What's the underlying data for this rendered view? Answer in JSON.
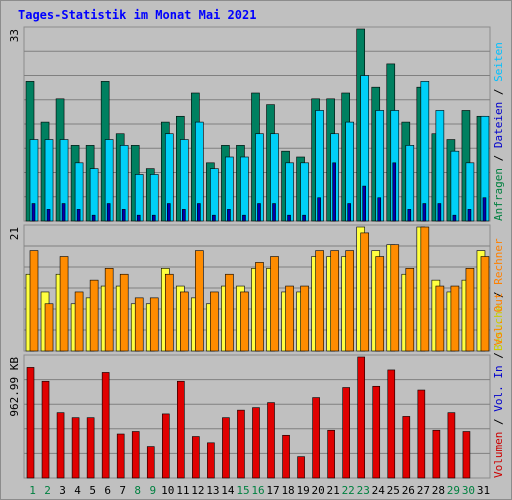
{
  "title": "Tages-Statistik im Monat Mai 2021",
  "chart_data": [
    {
      "type": "bar",
      "name": "top",
      "ymax_label": "33",
      "ylim": [
        0,
        33
      ],
      "right_legend": [
        {
          "text": "Anfragen",
          "color": "#008040"
        },
        {
          "text": "Dateien",
          "color": "#0000cc"
        },
        {
          "text": "Seiten",
          "color": "#00c0ff"
        }
      ],
      "series": [
        {
          "name": "Anfragen",
          "color": "#008060",
          "values": [
            24,
            17,
            21,
            13,
            13,
            24,
            15,
            13,
            9,
            17,
            18,
            22,
            10,
            13,
            13,
            22,
            20,
            12,
            11,
            21,
            21,
            22,
            33,
            23,
            27,
            17,
            23,
            15,
            14,
            19,
            18
          ]
        },
        {
          "name": "Dateien",
          "color": "#00d0f8",
          "values": [
            14,
            14,
            14,
            10,
            9,
            14,
            13,
            8,
            8,
            15,
            14,
            17,
            9,
            11,
            11,
            15,
            15,
            10,
            10,
            19,
            15,
            17,
            25,
            19,
            19,
            13,
            24,
            19,
            12,
            10,
            18
          ]
        },
        {
          "name": "Dateien-inner",
          "color": "#0000b0",
          "values": [
            3,
            2,
            3,
            2,
            1,
            3,
            2,
            1,
            1,
            3,
            2,
            3,
            1,
            2,
            1,
            3,
            3,
            1,
            1,
            4,
            10,
            3,
            6,
            4,
            10,
            2,
            3,
            3,
            1,
            2,
            4
          ]
        }
      ]
    },
    {
      "type": "bar",
      "name": "middle",
      "ymax_label": "21",
      "ylim": [
        0,
        21
      ],
      "right_legend": [
        {
          "text": "Besuche",
          "color": "#cccc00"
        },
        {
          "text": "Rechner",
          "color": "#ff8000"
        }
      ],
      "series": [
        {
          "name": "Besuche",
          "color": "#ffff40",
          "values": [
            13,
            10,
            13,
            8,
            9,
            11,
            11,
            8,
            8,
            14,
            11,
            9,
            8,
            11,
            11,
            14,
            14,
            10,
            10,
            16,
            16,
            16,
            21,
            17,
            18,
            13,
            21,
            12,
            10,
            12,
            17
          ]
        },
        {
          "name": "Rechner",
          "color": "#ff8c00",
          "values": [
            17,
            8,
            16,
            10,
            12,
            14,
            13,
            9,
            9,
            13,
            10,
            17,
            10,
            13,
            10,
            15,
            16,
            11,
            11,
            17,
            17,
            17,
            20,
            16,
            18,
            14,
            21,
            11,
            11,
            14,
            16
          ]
        }
      ]
    },
    {
      "type": "bar",
      "name": "bottom",
      "ymax_label": "962.99 KB",
      "ylim": [
        0,
        962.99
      ],
      "right_legend": [
        {
          "text": "Volumen",
          "color": "#cc0000"
        },
        {
          "text": "Vol. In",
          "color": "#0000cc"
        },
        {
          "text": "Vol. Out",
          "color": "#ff8000"
        }
      ],
      "series": [
        {
          "name": "Volumen",
          "color": "#e00000",
          "values": [
            880,
            770,
            520,
            480,
            480,
            840,
            350,
            370,
            250,
            510,
            770,
            330,
            280,
            480,
            540,
            560,
            600,
            340,
            170,
            640,
            380,
            720,
            962.99,
            730,
            860,
            490,
            700,
            380,
            520,
            370,
            0
          ]
        }
      ]
    }
  ],
  "x_labels": [
    {
      "t": "1",
      "c": "#008040"
    },
    {
      "t": "2",
      "c": "#008040"
    },
    {
      "t": "3",
      "c": "#000000"
    },
    {
      "t": "4",
      "c": "#000000"
    },
    {
      "t": "5",
      "c": "#000000"
    },
    {
      "t": "6",
      "c": "#000000"
    },
    {
      "t": "7",
      "c": "#000000"
    },
    {
      "t": "8",
      "c": "#008040"
    },
    {
      "t": "9",
      "c": "#008040"
    },
    {
      "t": "10",
      "c": "#000000"
    },
    {
      "t": "11",
      "c": "#000000"
    },
    {
      "t": "12",
      "c": "#000000"
    },
    {
      "t": "13",
      "c": "#000000"
    },
    {
      "t": "14",
      "c": "#000000"
    },
    {
      "t": "15",
      "c": "#008040"
    },
    {
      "t": "16",
      "c": "#008040"
    },
    {
      "t": "17",
      "c": "#000000"
    },
    {
      "t": "18",
      "c": "#000000"
    },
    {
      "t": "19",
      "c": "#000000"
    },
    {
      "t": "20",
      "c": "#000000"
    },
    {
      "t": "21",
      "c": "#000000"
    },
    {
      "t": "22",
      "c": "#008040"
    },
    {
      "t": "23",
      "c": "#008040"
    },
    {
      "t": "24",
      "c": "#000000"
    },
    {
      "t": "25",
      "c": "#000000"
    },
    {
      "t": "26",
      "c": "#000000"
    },
    {
      "t": "27",
      "c": "#000000"
    },
    {
      "t": "28",
      "c": "#000000"
    },
    {
      "t": "29",
      "c": "#008040"
    },
    {
      "t": "30",
      "c": "#008040"
    },
    {
      "t": "31",
      "c": "#000000"
    }
  ],
  "separator_color": "#000000",
  "grid_color": "#808080"
}
